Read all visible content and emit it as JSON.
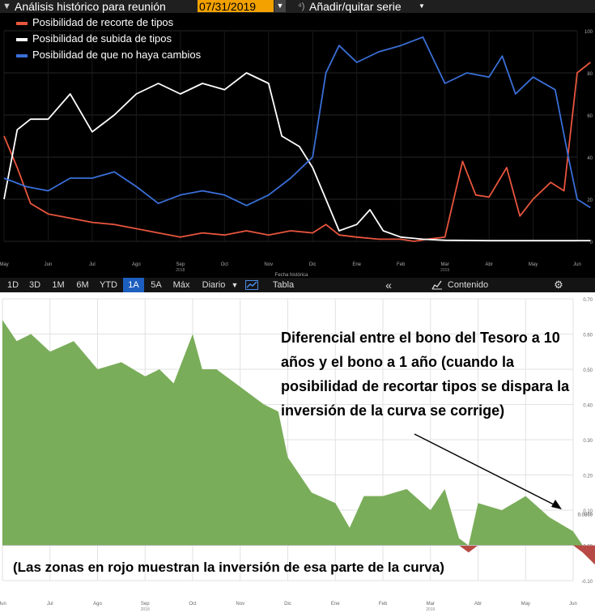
{
  "header": {
    "title": "Análisis histórico para reunión",
    "date": "07/31/2019",
    "dropdown_glyph": "▼",
    "series_icon": "⁴)",
    "series_label": "Añadir/quitar serie",
    "series_caret": "▼"
  },
  "toolbar": {
    "ranges": [
      "1D",
      "3D",
      "1M",
      "6M",
      "YTD",
      "1A",
      "5A",
      "Máx"
    ],
    "active_range": "1A",
    "frequency": "Diario",
    "frequency_caret": "▼",
    "table_label": "Tabla",
    "back_glyph": "«",
    "content_label": "Contenido",
    "gear_glyph": "⚙"
  },
  "annotations": {
    "spread_note": "Diferencial entre el bono del Tesoro a 10 años y el bono a 1 año (cuando la posibilidad de recortar tipos se dispara la inversión de la curva se corrige)",
    "red_note": "(Las zonas en rojo muestran la inversión de esa parte de la curva)"
  },
  "colors": {
    "cut": "#e8553d",
    "hike": "#ffffff",
    "nochange": "#3a6fd8",
    "spread_positive": "#7aad5a",
    "spread_negative": "#b74a44",
    "active_button": "#1d5fbf",
    "date_field": "#f2a100"
  },
  "chart_data": [
    {
      "type": "line",
      "x_labels": [
        "May",
        "Jun",
        "Jul",
        "Ago",
        "Sep",
        "Oct",
        "Nov",
        "Dic",
        "Ene",
        "Feb",
        "Mar",
        "Abr",
        "May",
        "Jun"
      ],
      "year_labels": [
        {
          "after": "Sep",
          "label": "2018"
        },
        {
          "after": "Mar",
          "label": "2019"
        }
      ],
      "xlabel": "Fecha histórica",
      "ylim": [
        0,
        100
      ],
      "y_ticks": [
        0,
        20,
        40,
        60,
        80,
        100
      ],
      "legend_position": "top-left",
      "series": [
        {
          "name": "Posibilidad de recorte de tipos",
          "color": "#e8553d",
          "values": [
            [
              0,
              50
            ],
            [
              0.3,
              35
            ],
            [
              0.6,
              18
            ],
            [
              1,
              13
            ],
            [
              1.5,
              11
            ],
            [
              2,
              9
            ],
            [
              2.5,
              8
            ],
            [
              3,
              6
            ],
            [
              3.5,
              4
            ],
            [
              4,
              2
            ],
            [
              4.5,
              4
            ],
            [
              5,
              3
            ],
            [
              5.5,
              5
            ],
            [
              6,
              3
            ],
            [
              6.5,
              5
            ],
            [
              7,
              4
            ],
            [
              7.3,
              8
            ],
            [
              7.6,
              3
            ],
            [
              8,
              2
            ],
            [
              8.5,
              1
            ],
            [
              9,
              1
            ],
            [
              9.3,
              0
            ],
            [
              9.6,
              1
            ],
            [
              10,
              2
            ],
            [
              10.4,
              38
            ],
            [
              10.7,
              22
            ],
            [
              11,
              21
            ],
            [
              11.4,
              35
            ],
            [
              11.7,
              12
            ],
            [
              12,
              20
            ],
            [
              12.4,
              28
            ],
            [
              12.7,
              24
            ],
            [
              13,
              80
            ],
            [
              13.3,
              85
            ]
          ]
        },
        {
          "name": "Posibilidad de subida de tipos",
          "color": "#ffffff",
          "values": [
            [
              0,
              20
            ],
            [
              0.3,
              53
            ],
            [
              0.6,
              58
            ],
            [
              1,
              58
            ],
            [
              1.5,
              70
            ],
            [
              2,
              52
            ],
            [
              2.5,
              60
            ],
            [
              3,
              70
            ],
            [
              3.5,
              75
            ],
            [
              4,
              70
            ],
            [
              4.5,
              75
            ],
            [
              5,
              72
            ],
            [
              5.5,
              80
            ],
            [
              6,
              75
            ],
            [
              6.3,
              50
            ],
            [
              6.7,
              45
            ],
            [
              7,
              35
            ],
            [
              7.3,
              20
            ],
            [
              7.6,
              5
            ],
            [
              8,
              8
            ],
            [
              8.3,
              15
            ],
            [
              8.6,
              5
            ],
            [
              9,
              2
            ],
            [
              9.5,
              1
            ],
            [
              10,
              0.5
            ],
            [
              11,
              0.3
            ],
            [
              12,
              0.3
            ],
            [
              13,
              0.3
            ],
            [
              13.3,
              0.3
            ]
          ]
        },
        {
          "name": "Posibilidad de que no haya cambios",
          "color": "#3a6fd8",
          "values": [
            [
              0,
              30
            ],
            [
              0.5,
              26
            ],
            [
              1,
              24
            ],
            [
              1.5,
              30
            ],
            [
              2,
              30
            ],
            [
              2.5,
              33
            ],
            [
              3,
              26
            ],
            [
              3.5,
              18
            ],
            [
              4,
              22
            ],
            [
              4.5,
              24
            ],
            [
              5,
              22
            ],
            [
              5.5,
              17
            ],
            [
              6,
              22
            ],
            [
              6.5,
              30
            ],
            [
              7,
              40
            ],
            [
              7.3,
              80
            ],
            [
              7.6,
              93
            ],
            [
              8,
              85
            ],
            [
              8.5,
              90
            ],
            [
              9,
              93
            ],
            [
              9.5,
              97
            ],
            [
              10,
              75
            ],
            [
              10.5,
              80
            ],
            [
              11,
              78
            ],
            [
              11.3,
              88
            ],
            [
              11.6,
              70
            ],
            [
              12,
              78
            ],
            [
              12.5,
              72
            ],
            [
              12.8,
              40
            ],
            [
              13,
              20
            ],
            [
              13.3,
              16
            ]
          ]
        }
      ]
    },
    {
      "type": "area",
      "title": "Diferencial entre el bono del Tesoro a 10 años y el bono a 1 año",
      "x_labels": [
        "Jun",
        "Jul",
        "Ago",
        "Sep",
        "Oct",
        "Nov",
        "Dic",
        "Ene",
        "Feb",
        "Mar",
        "Abr",
        "May",
        "Jun"
      ],
      "year_labels": [
        {
          "after": "Sep",
          "label": "2018"
        },
        {
          "after": "Mar",
          "label": "2019"
        }
      ],
      "ylim": [
        -0.1,
        0.7
      ],
      "y_ticks": [
        -0.1,
        0.0,
        0.1,
        0.2,
        0.3,
        0.4,
        0.5,
        0.6,
        0.7
      ],
      "last_value_label": "0.0869",
      "values": [
        [
          0,
          0.64
        ],
        [
          0.3,
          0.58
        ],
        [
          0.6,
          0.6
        ],
        [
          1,
          0.55
        ],
        [
          1.5,
          0.58
        ],
        [
          2,
          0.5
        ],
        [
          2.5,
          0.52
        ],
        [
          3,
          0.48
        ],
        [
          3.3,
          0.5
        ],
        [
          3.6,
          0.46
        ],
        [
          4,
          0.6
        ],
        [
          4.2,
          0.5
        ],
        [
          4.5,
          0.5
        ],
        [
          5,
          0.45
        ],
        [
          5.5,
          0.4
        ],
        [
          5.8,
          0.38
        ],
        [
          6,
          0.25
        ],
        [
          6.5,
          0.15
        ],
        [
          7,
          0.12
        ],
        [
          7.3,
          0.05
        ],
        [
          7.6,
          0.14
        ],
        [
          8,
          0.14
        ],
        [
          8.5,
          0.16
        ],
        [
          9,
          0.1
        ],
        [
          9.3,
          0.16
        ],
        [
          9.6,
          0.02
        ],
        [
          9.8,
          -0.02
        ],
        [
          10,
          0.12
        ],
        [
          10.5,
          0.1
        ],
        [
          11,
          0.14
        ],
        [
          11.5,
          0.08
        ],
        [
          12,
          0.04
        ],
        [
          12.2,
          -0.02
        ],
        [
          12.5,
          -0.06
        ],
        [
          12.7,
          0.1
        ],
        [
          13,
          0.09
        ]
      ]
    }
  ]
}
